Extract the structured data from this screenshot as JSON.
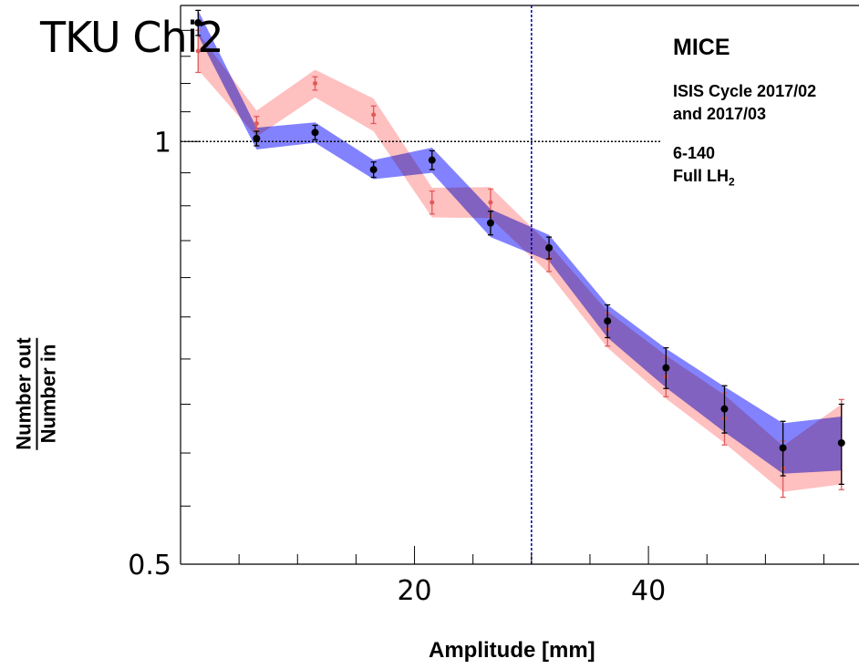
{
  "overlay_title": "TKU Chi2",
  "annotations": {
    "experiment": "MICE",
    "cycle_line1": "ISIS Cycle 2017/02",
    "cycle_line2": "and 2017/03",
    "setting": "6-140",
    "absorber_prefix": "Full LH",
    "absorber_sub": "2"
  },
  "colors": {
    "data_band": "#7b7bff",
    "mc_band": "#ffbdbd",
    "data_points": "#000000",
    "mc_points": "#e05a5a",
    "cut_line": "#0000aa",
    "reference_line": "#000000"
  },
  "chart_data": {
    "type": "line",
    "xlabel": "Amplitude [mm]",
    "ylabel_numerator": "Number out",
    "ylabel_denominator": "Number in",
    "xlim": [
      0,
      58
    ],
    "ylim": [
      0.5,
      1.25
    ],
    "x_tick_labels": [
      "20",
      "40"
    ],
    "y_tick_labels": [
      "0.5",
      "1"
    ],
    "reference_y": 1.0,
    "amplitude_cut_x": 30,
    "log_y": true,
    "series": [
      {
        "style": "blue band, black points",
        "x": [
          1.5,
          6.5,
          11.5,
          16.5,
          21.5,
          26.5,
          31.5,
          36.5,
          41.5,
          46.5,
          51.5,
          56.5
        ],
        "y": [
          1.215,
          1.005,
          1.015,
          0.955,
          0.97,
          0.875,
          0.84,
          0.745,
          0.69,
          0.645,
          0.605,
          0.61
        ],
        "err": [
          0.025,
          0.012,
          0.012,
          0.012,
          0.015,
          0.017,
          0.015,
          0.02,
          0.023,
          0.025,
          0.027,
          0.04
        ],
        "band_half_width": [
          0.025,
          0.018,
          0.017,
          0.015,
          0.02,
          0.02,
          0.018,
          0.02,
          0.022,
          0.024,
          0.025,
          0.027
        ]
      },
      {
        "style": "pink band, red points",
        "x": [
          1.5,
          6.5,
          11.5,
          16.5,
          21.5,
          26.5,
          31.5,
          36.5,
          41.5,
          46.5,
          51.5,
          56.5
        ],
        "y": [
          1.16,
          1.03,
          1.1,
          1.045,
          0.905,
          0.905,
          0.825,
          0.735,
          0.68,
          0.635,
          0.585,
          0.61
        ],
        "err": [
          0.04,
          0.012,
          0.012,
          0.015,
          0.017,
          0.02,
          0.017,
          0.02,
          0.022,
          0.027,
          0.027,
          0.045
        ],
        "band_half_width": [
          0.035,
          0.022,
          0.025,
          0.028,
          0.022,
          0.023,
          0.02,
          0.022,
          0.024,
          0.025,
          0.022,
          0.04
        ]
      }
    ]
  }
}
